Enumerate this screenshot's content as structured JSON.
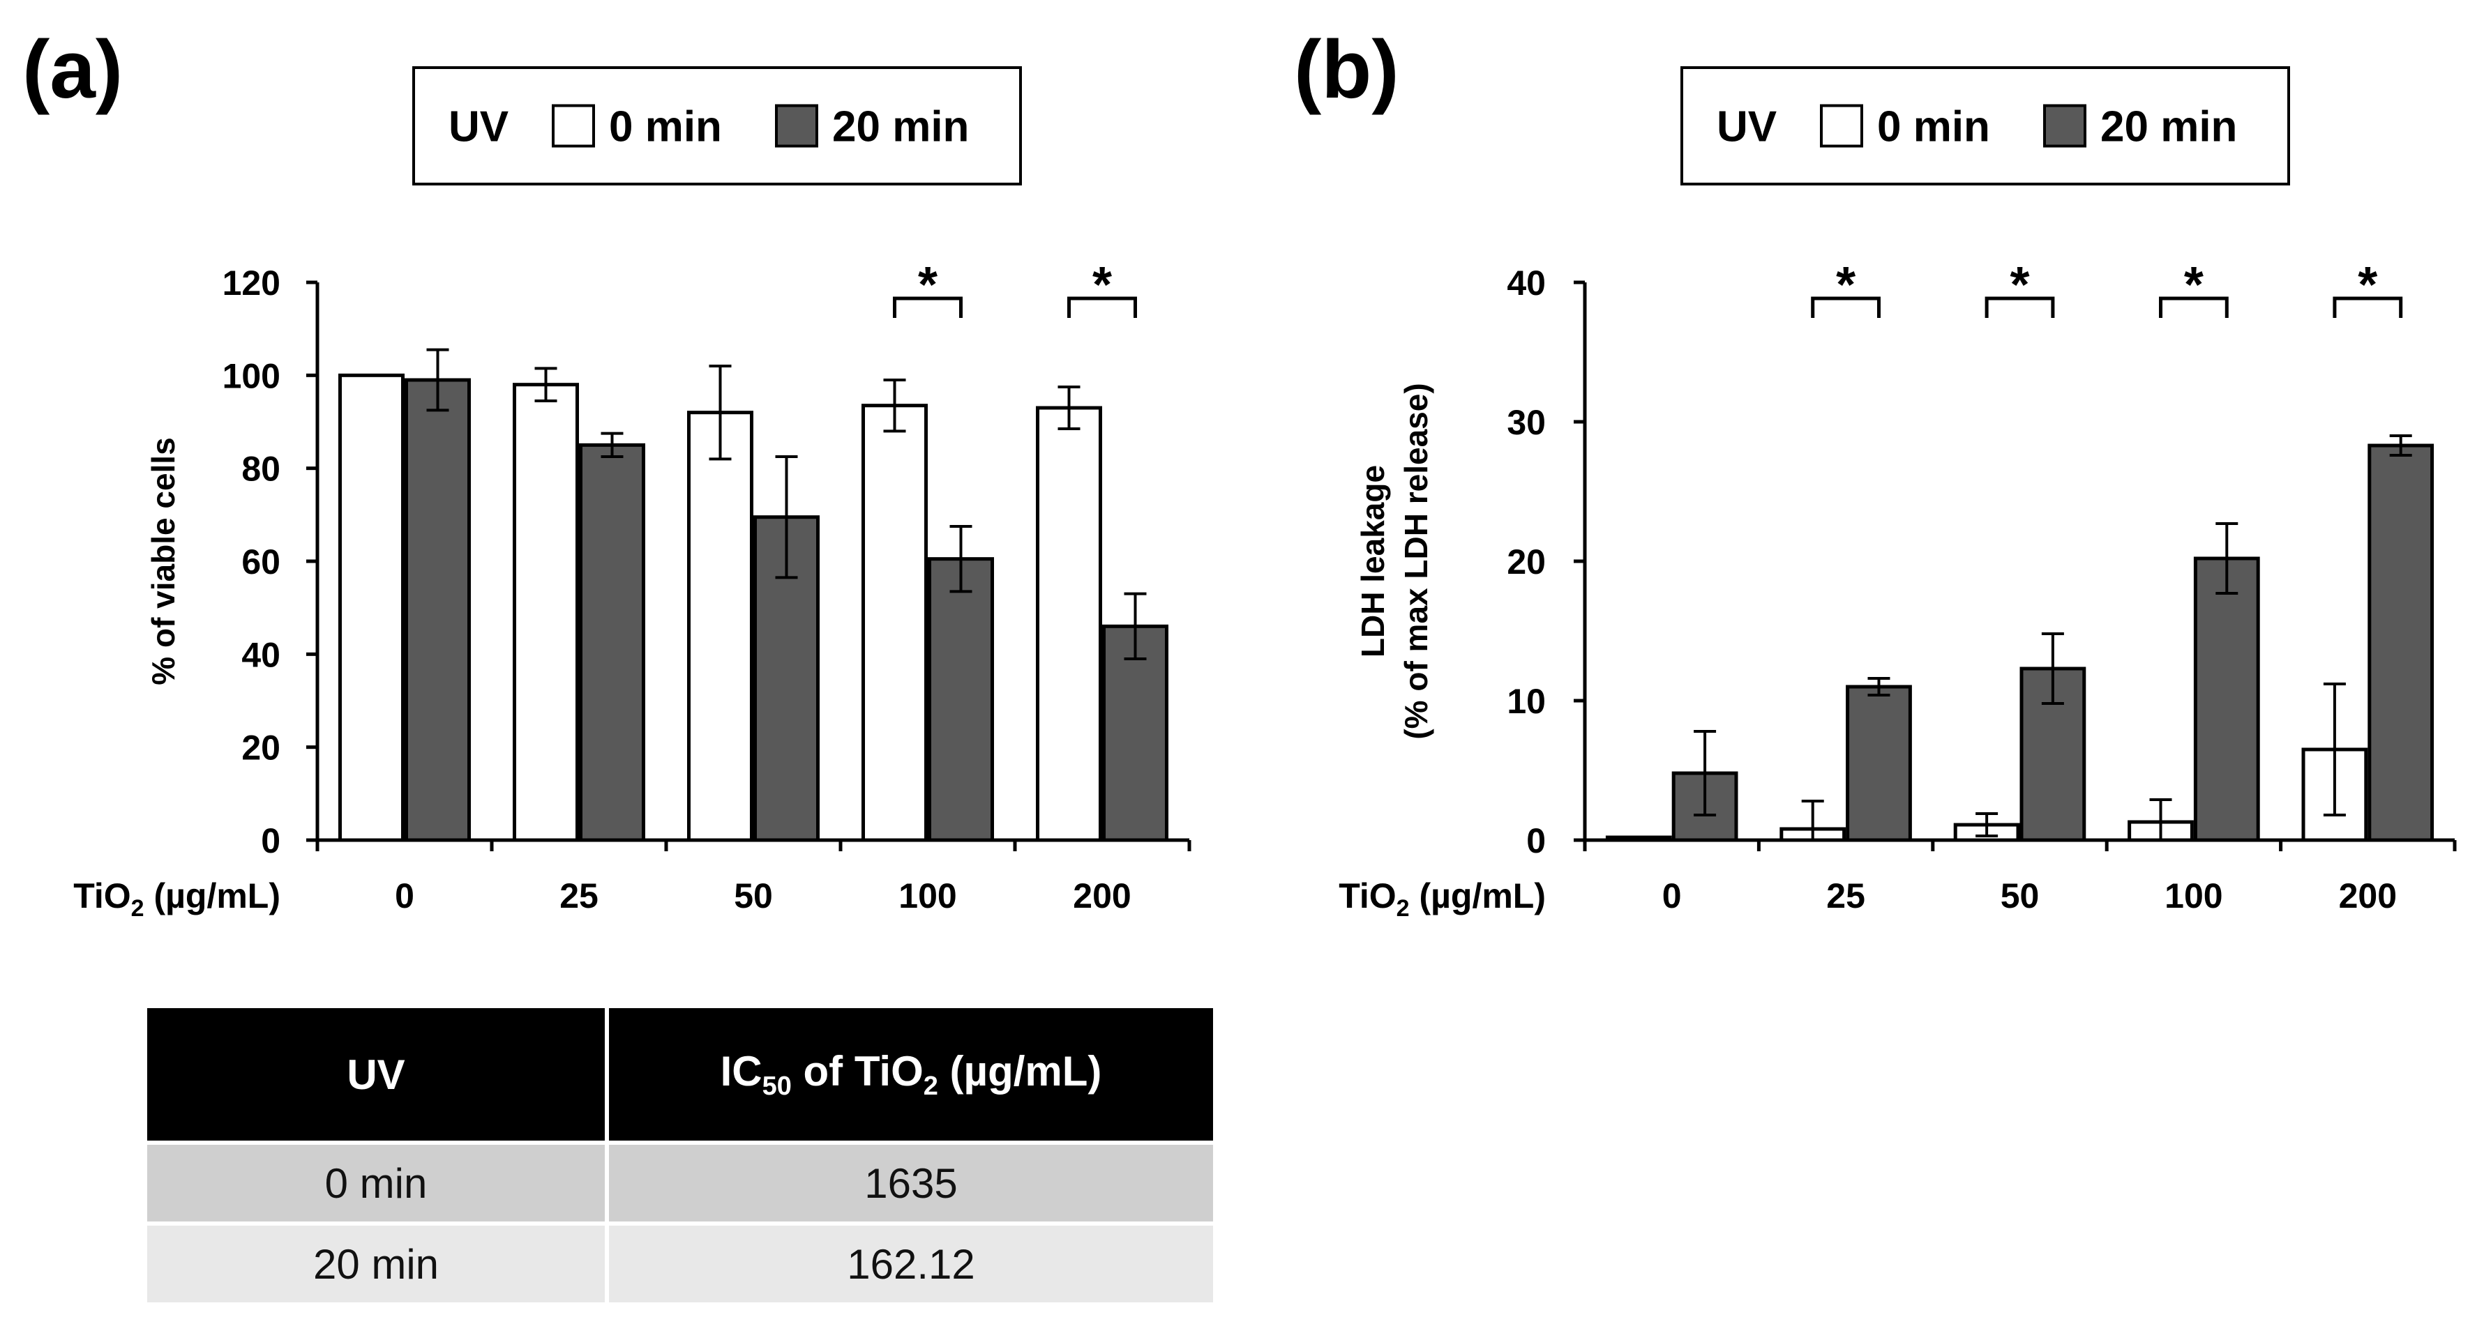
{
  "colors": {
    "uv0_fill": "#ffffff",
    "uv20_fill": "#595959",
    "stroke": "#000000"
  },
  "legend": {
    "uv_label": "UV",
    "items": [
      "0 min",
      "20 min"
    ]
  },
  "chart_data": [
    {
      "type": "bar",
      "panel_label": "(a)",
      "title": "",
      "xlabel": "TiO₂ (µg/mL)",
      "ylabel": "% of viable cells",
      "ylim": [
        0,
        120
      ],
      "yticks": [
        0,
        20,
        40,
        60,
        80,
        100,
        120
      ],
      "categories": [
        "0",
        "25",
        "50",
        "100",
        "200"
      ],
      "series": [
        {
          "name": "0 min",
          "values": [
            100,
            98,
            92,
            93.5,
            93
          ],
          "errors": [
            0,
            3.5,
            10,
            5.5,
            4.5
          ]
        },
        {
          "name": "20 min",
          "values": [
            99,
            85,
            69.5,
            60.5,
            46
          ],
          "errors": [
            6.5,
            2.5,
            13,
            7,
            7
          ]
        }
      ],
      "significance": [
        {
          "category_index": 3,
          "label": "*"
        },
        {
          "category_index": 4,
          "label": "*"
        }
      ]
    },
    {
      "type": "bar",
      "panel_label": "(b)",
      "title": "",
      "xlabel": "TiO₂ (µg/mL)",
      "ylabel": "LDH leakage",
      "ylabel2": "(% of max LDH release)",
      "ylim": [
        0,
        40
      ],
      "yticks": [
        0,
        10,
        20,
        30,
        40
      ],
      "categories": [
        "0",
        "25",
        "50",
        "100",
        "200"
      ],
      "series": [
        {
          "name": "0 min",
          "values": [
            0.2,
            0.8,
            1.1,
            1.3,
            6.5
          ],
          "errors": [
            0,
            2,
            0.8,
            1.6,
            4.7
          ]
        },
        {
          "name": "20 min",
          "values": [
            4.8,
            11,
            12.3,
            20.2,
            28.3
          ],
          "errors": [
            3,
            0.6,
            2.5,
            2.5,
            0.7
          ]
        }
      ],
      "significance": [
        {
          "category_index": 1,
          "label": "*"
        },
        {
          "category_index": 2,
          "label": "*"
        },
        {
          "category_index": 3,
          "label": "*"
        },
        {
          "category_index": 4,
          "label": "*"
        }
      ]
    }
  ],
  "table": {
    "headers": [
      "UV",
      "IC50 of TiO2 (µg/mL)"
    ],
    "header_col2_parts": {
      "ic": "IC",
      "ic_sub": "50",
      "of": " of TiO",
      "ti_sub": "2",
      "unit": " (µg/mL)"
    },
    "rows": [
      {
        "uv": "0 min",
        "ic50": "1635"
      },
      {
        "uv": "20 min",
        "ic50": "162.12"
      }
    ]
  }
}
